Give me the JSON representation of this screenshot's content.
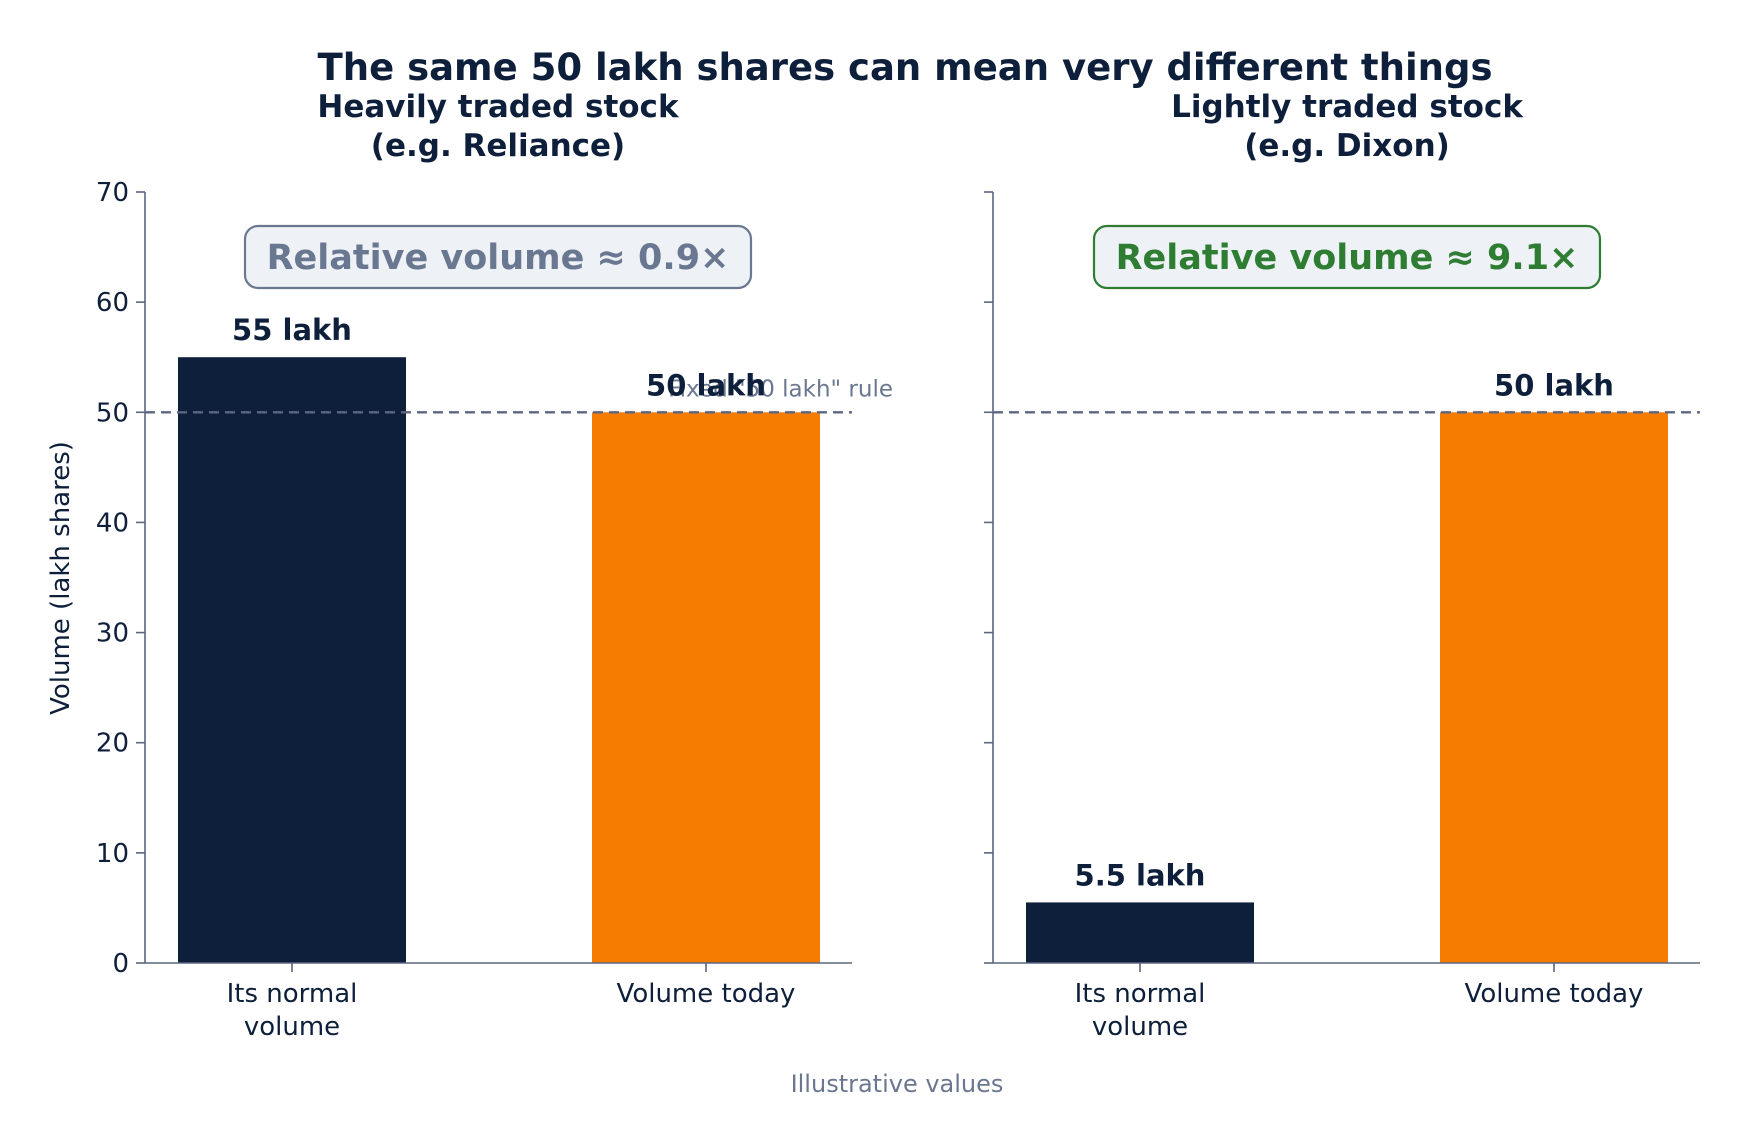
{
  "figure": {
    "title": "The same 50 lakh shares can mean very different things",
    "footnote": "Illustrative values",
    "ylabel": "Volume (lakh shares)",
    "colors": {
      "normal_bar": "#0d1f3a",
      "today_bar": "#f57c00",
      "axis": "#5b6680",
      "text": "#0d1f3a",
      "muted": "#6a7790",
      "green": "#2e7d32",
      "box_fill": "#eef2f6"
    }
  },
  "chart_data": [
    {
      "type": "bar",
      "title_lines": [
        "Heavily traded stock",
        "(e.g. Reliance)"
      ],
      "categories": [
        [
          "Its normal",
          "volume"
        ],
        [
          "Volume today"
        ]
      ],
      "values": [
        55,
        50
      ],
      "value_labels": [
        "55 lakh",
        "50 lakh"
      ],
      "bar_colors": [
        "#0d1f3a",
        "#f57c00"
      ],
      "ylim": [
        0,
        70
      ],
      "yticks": [
        0,
        10,
        20,
        30,
        40,
        50,
        60,
        70
      ],
      "reference_line": {
        "value": 50,
        "label": "Fixed \"50 lakh\" rule",
        "style": "dashed"
      },
      "annotation": {
        "text": "Relative volume ≈ 0.9×",
        "color": "#6a7790",
        "border": "#6a7790"
      },
      "ylabel": "Volume (lakh shares)",
      "show_ytick_labels": true
    },
    {
      "type": "bar",
      "title_lines": [
        "Lightly traded stock",
        "(e.g. Dixon)"
      ],
      "categories": [
        [
          "Its normal",
          "volume"
        ],
        [
          "Volume today"
        ]
      ],
      "values": [
        5.5,
        50
      ],
      "value_labels": [
        "5.5 lakh",
        "50 lakh"
      ],
      "bar_colors": [
        "#0d1f3a",
        "#f57c00"
      ],
      "ylim": [
        0,
        70
      ],
      "yticks": [
        0,
        10,
        20,
        30,
        40,
        50,
        60,
        70
      ],
      "reference_line": {
        "value": 50,
        "label": "",
        "style": "dashed"
      },
      "annotation": {
        "text": "Relative volume ≈ 9.1×",
        "color": "#2e7d32",
        "border": "#2e7d32"
      },
      "ylabel": "",
      "show_ytick_labels": false
    }
  ]
}
